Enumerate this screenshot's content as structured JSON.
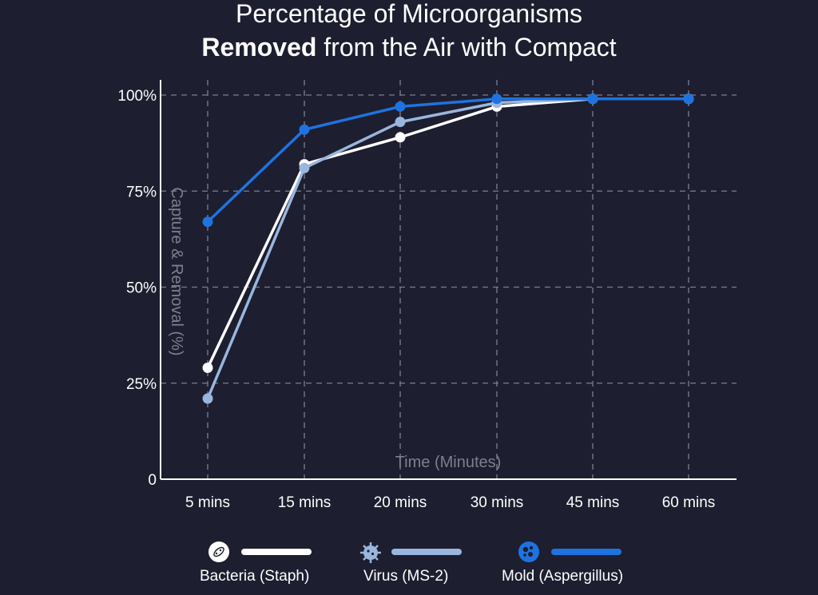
{
  "title": {
    "line1": "Percentage of Microorganisms",
    "line2_bold": "Removed",
    "line2_rest": " from the Air with Compact"
  },
  "chart_data": {
    "type": "line",
    "title": "Percentage of Microorganisms Removed from the Air with Compact",
    "xlabel": "Time (Minutes)",
    "ylabel": "Capture & Removal (%)",
    "categories": [
      "5 mins",
      "15 mins",
      "20 mins",
      "30 mins",
      "45 mins",
      "60 mins"
    ],
    "yticks": [
      "0",
      "25%",
      "50%",
      "75%",
      "100%"
    ],
    "ylim": [
      0,
      100
    ],
    "grid": true,
    "series": [
      {
        "name": "Bacteria (Staph)",
        "color": "#ffffff",
        "values": [
          29,
          82,
          89,
          97,
          99,
          99
        ],
        "icon": "bacteria-icon"
      },
      {
        "name": "Virus (MS-2)",
        "color": "#9ab6de",
        "values": [
          21,
          81,
          93,
          98,
          99,
          99
        ],
        "icon": "virus-icon"
      },
      {
        "name": "Mold (Aspergillus)",
        "color": "#1e73e0",
        "values": [
          67,
          91,
          97,
          99,
          99,
          99
        ],
        "icon": "mold-icon"
      }
    ],
    "legend": "bottom"
  }
}
